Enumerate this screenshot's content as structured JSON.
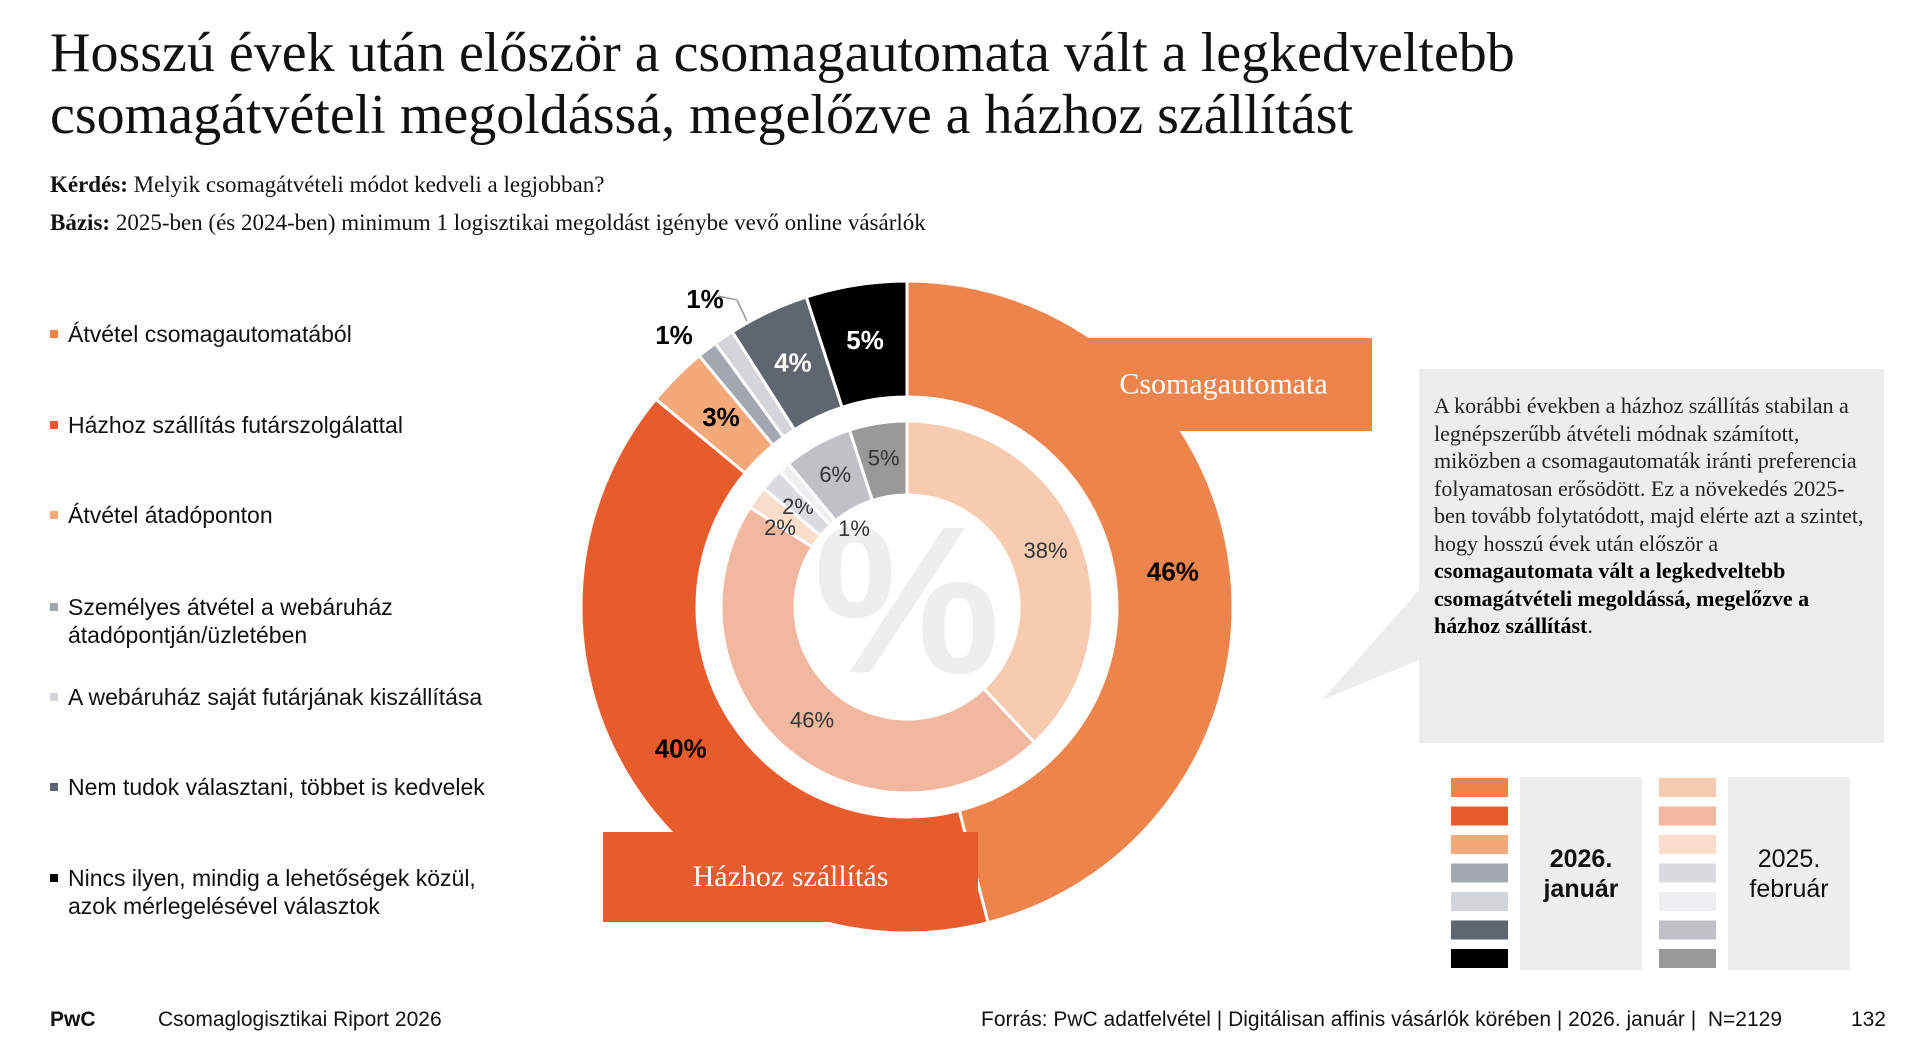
{
  "header": {
    "title": "Hosszú évek után először a csomagautomata vált a legkedveltebb csomagátvételi megoldássá, megelőzve a házhoz szállítást",
    "question_label": "Kérdés:",
    "question": "Melyik csomagátvételi módot kedveli a legjobban?",
    "base_label": "Bázis:",
    "base": "2025-ben (és 2024-ben) minimum 1 logisztikai megoldást igénybe vevő online vásárlók"
  },
  "chart_data": {
    "type": "donut",
    "categories": [
      "Átvétel csomagautomatából",
      "Házhoz szállítás futárszolgálattal",
      "Átvétel átadóponton",
      "Személyes átvétel a webáruház átadópontján/üzletében",
      "A webáruház saját futárjának kiszállítása",
      "Nem tudok választani, többet is kedvelek",
      "Nincs ilyen, mindig a lehetőségek közül, azok mérlegelésével választok"
    ],
    "series": [
      {
        "name": "2026. január",
        "colors": [
          "#ED844C",
          "#E85B2D",
          "#F3A97A",
          "#A3A8B0",
          "#D2D5D9",
          "#5F6670",
          "#000000"
        ],
        "values": [
          46,
          40,
          3,
          1,
          1,
          4,
          5
        ],
        "value_labels": [
          "46%",
          "40%",
          "3%",
          "1%",
          "1%",
          "4%",
          "5%"
        ]
      },
      {
        "name": "2025. február",
        "colors": [
          "#F7CBB0",
          "#F2B89F",
          "#FADDCA",
          "#D9DBDF",
          "#EEEFF0",
          "#BFC1C4",
          "#999999"
        ],
        "values": [
          38,
          46,
          2,
          2,
          1,
          6,
          5
        ],
        "value_labels": [
          "38%",
          "46%",
          "2%",
          "2%",
          "1%",
          "6%",
          "5%"
        ]
      }
    ],
    "annotations": [
      "Csomagautomata",
      "Házhoz szállítás"
    ],
    "watermark": "%"
  },
  "callout": {
    "parts": [
      {
        "text": "A korábbi években a házhoz szállítás stabilan a legnépszerűbb átvételi módnak számított, miközben a csomagautomaták iránti preferencia folyamatosan erősödött. Ez a növekedés 2025-ben tovább folytatódott, majd elérte azt a szintet, hogy hosszú évek után először a ",
        "bold": false
      },
      {
        "text": "csomagautomata vált a legkedveltebb csomagátvételi megoldássá, megelőzve a házhoz szállítást",
        "bold": true
      },
      {
        "text": ".",
        "bold": false
      }
    ]
  },
  "footer": {
    "brand": "PwC",
    "report": "Csomaglogisztikai Riport 2026",
    "source": "Forrás: PwC adatfelvétel | Digitálisan affinis vásárlók körében | 2026. január |  N=2129",
    "page": "132"
  }
}
